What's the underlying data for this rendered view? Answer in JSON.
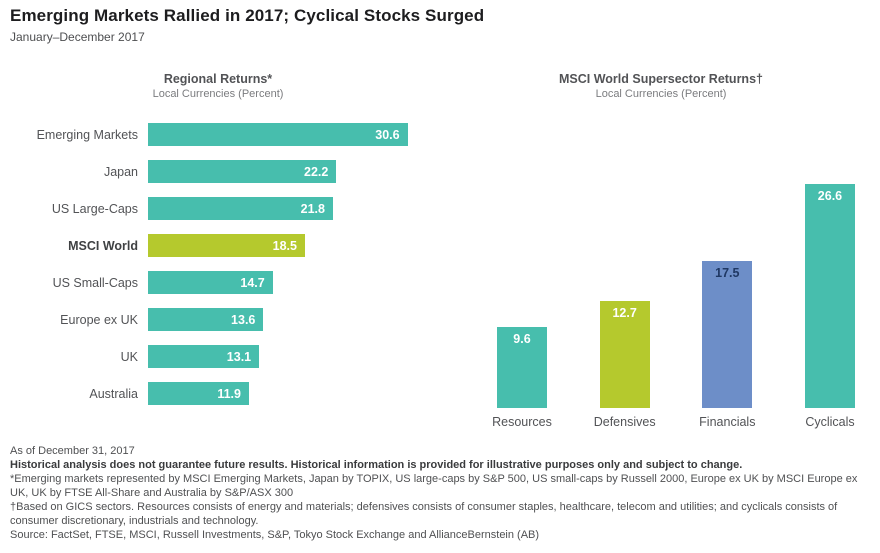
{
  "header": {
    "title": "Emerging Markets Rallied in 2017; Cyclical Stocks Surged",
    "subtitle": "January–December 2017"
  },
  "colors": {
    "teal": "#47BEAD",
    "lime": "#B5C92D",
    "blue": "#6D8EC8",
    "white": "#FFFFFF",
    "financials_label": "#1F3864"
  },
  "chart_data": [
    {
      "type": "bar",
      "orientation": "horizontal",
      "title": "Regional Returns*",
      "subtitle": "Local Currencies (Percent)",
      "categories": [
        "Emerging Markets",
        "Japan",
        "US Large-Caps",
        "MSCI World",
        "US Small-Caps",
        "Europe ex UK",
        "UK",
        "Australia"
      ],
      "values": [
        30.6,
        22.2,
        21.8,
        18.5,
        14.7,
        13.6,
        13.1,
        11.9
      ],
      "bar_colors": [
        "teal",
        "teal",
        "teal",
        "lime",
        "teal",
        "teal",
        "teal",
        "teal"
      ],
      "emphasized_category": "MSCI World",
      "xlim": [
        0,
        33
      ],
      "value_label_position": "inside-end"
    },
    {
      "type": "bar",
      "orientation": "vertical",
      "title": "MSCI World Supersector Returns†",
      "subtitle": "Local Currencies (Percent)",
      "categories": [
        "Resources",
        "Defensives",
        "Financials",
        "Cyclicals"
      ],
      "values": [
        9.6,
        12.7,
        17.5,
        26.6
      ],
      "bar_colors": [
        "teal",
        "lime",
        "blue",
        "teal"
      ],
      "value_label_colors": [
        "white",
        "white",
        "financials_label",
        "white"
      ],
      "ylim": [
        0,
        28
      ],
      "value_label_position": "inside-top"
    }
  ],
  "footnotes": [
    {
      "text": "As of December 31, 2017",
      "bold": false
    },
    {
      "text": "Historical analysis does not guarantee future results. Historical information is provided for illustrative purposes only and subject to change.",
      "bold": true
    },
    {
      "text": "*Emerging markets represented by MSCI Emerging Markets, Japan by TOPIX, US large-caps by S&P 500, US small-caps by Russell 2000, Europe ex UK by MSCI Europe ex UK, UK by FTSE All-Share and Australia by S&P/ASX 300",
      "bold": false
    },
    {
      "text": "†Based on GICS sectors. Resources consists of energy and materials; defensives consists of consumer staples, healthcare, telecom and utilities; and cyclicals consists of consumer discretionary, industrials and technology.",
      "bold": false
    },
    {
      "text": "Source: FactSet, FTSE, MSCI, Russell Investments, S&P, Tokyo Stock Exchange and AllianceBernstein (AB)",
      "bold": false
    }
  ]
}
